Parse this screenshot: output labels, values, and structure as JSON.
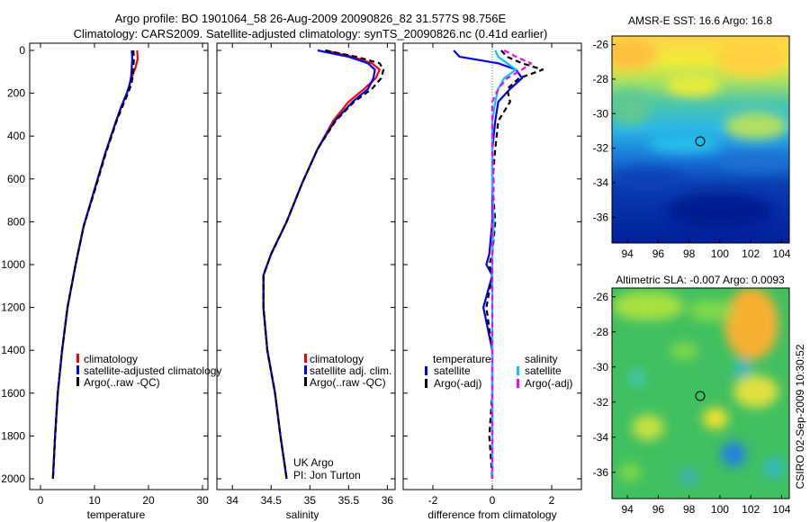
{
  "title": {
    "line1": "Argo profile: BO 1901064_58 26-Aug-2009 20090826_82 31.577S 98.756E",
    "line2": "Climatology: CARS2009. Satellite-adjusted climatology: synTS_20090826.nc (0.41d earlier)"
  },
  "chart_data": [
    {
      "type": "line",
      "xlabel": "temperature",
      "xlim": [
        -2,
        31
      ],
      "ylim": [
        2000,
        0
      ],
      "xticks": [
        "0",
        "10",
        "20",
        "30"
      ],
      "yticks": [
        "0",
        "200",
        "400",
        "600",
        "800",
        "1000",
        "1200",
        "1400",
        "1600",
        "1800",
        "2000"
      ],
      "series": [
        {
          "name": "climatology",
          "color": "#ff0000",
          "style": "solid",
          "x": [
            17.9,
            18.0,
            17.6,
            17.0,
            16.5,
            16.0,
            15.0,
            14.0,
            12.0,
            10.0,
            8.0,
            6.5,
            5.0,
            4.0,
            3.2,
            2.7,
            2.4,
            2.3
          ],
          "y": [
            0,
            40,
            80,
            120,
            160,
            200,
            260,
            330,
            480,
            650,
            820,
            1000,
            1200,
            1400,
            1600,
            1800,
            1950,
            2000
          ]
        },
        {
          "name": "satellite-adjusted climatology",
          "color": "#0000ff",
          "style": "solid",
          "x": [
            16.9,
            17.0,
            16.9,
            16.8,
            16.5,
            16.0,
            15.0,
            14.0,
            12.0,
            10.0,
            8.0,
            6.5,
            5.0,
            4.0,
            3.2,
            2.7,
            2.4,
            2.3
          ],
          "y": [
            0,
            40,
            80,
            120,
            160,
            200,
            260,
            330,
            480,
            650,
            820,
            1000,
            1200,
            1400,
            1600,
            1800,
            1950,
            2000
          ]
        },
        {
          "name": "Argo(..raw -QC)",
          "color": "#000000",
          "style": "dashed",
          "x": [
            17.2,
            17.3,
            17.2,
            17.1,
            16.8,
            16.2,
            15.2,
            14.1,
            12.1,
            10.1,
            8.0,
            6.5,
            5.0,
            4.0,
            3.2,
            2.7,
            2.4,
            2.3
          ],
          "y": [
            0,
            40,
            80,
            120,
            160,
            200,
            260,
            330,
            480,
            650,
            820,
            1000,
            1200,
            1400,
            1600,
            1800,
            1950,
            2000
          ]
        }
      ],
      "legend_placement": "lower-right"
    },
    {
      "type": "line",
      "xlabel": "salinity",
      "xlim": [
        33.8,
        36.1
      ],
      "ylim": [
        2000,
        0
      ],
      "xticks": [
        "34",
        "34.5",
        "35",
        "35.5",
        "36"
      ],
      "series": [
        {
          "name": "climatology",
          "color": "#ff0000",
          "style": "solid",
          "x": [
            35.2,
            35.55,
            35.8,
            35.9,
            35.85,
            35.7,
            35.5,
            35.3,
            35.1,
            34.9,
            34.7,
            34.5,
            34.4,
            34.4,
            34.45,
            34.55,
            34.62,
            34.68,
            34.7
          ],
          "y": [
            0,
            30,
            60,
            90,
            130,
            180,
            240,
            330,
            460,
            620,
            800,
            950,
            1050,
            1200,
            1400,
            1600,
            1800,
            1950,
            2000
          ]
        },
        {
          "name": "satellite adj. clim.",
          "color": "#0000ff",
          "style": "solid",
          "x": [
            35.1,
            35.5,
            35.75,
            35.84,
            35.82,
            35.75,
            35.55,
            35.32,
            35.1,
            34.9,
            34.7,
            34.5,
            34.4,
            34.4,
            34.45,
            34.55,
            34.62,
            34.68,
            34.7
          ],
          "y": [
            0,
            30,
            60,
            90,
            130,
            180,
            240,
            330,
            460,
            620,
            800,
            950,
            1050,
            1200,
            1400,
            1600,
            1800,
            1950,
            2000
          ]
        },
        {
          "name": "Argo(..raw -QC)",
          "color": "#000000",
          "style": "dashed",
          "x": [
            35.2,
            35.6,
            35.9,
            35.95,
            35.92,
            35.8,
            35.57,
            35.33,
            35.1,
            34.9,
            34.7,
            34.5,
            34.4,
            34.4,
            34.45,
            34.55,
            34.62,
            34.68,
            34.7
          ],
          "y": [
            0,
            30,
            60,
            90,
            130,
            180,
            240,
            330,
            460,
            620,
            800,
            950,
            1050,
            1200,
            1400,
            1600,
            1800,
            1950,
            2000
          ]
        }
      ],
      "annotations": [
        "UK Argo",
        "PI: Jon Turton"
      ],
      "legend_placement": "lower-right"
    },
    {
      "type": "line",
      "xlabel": "difference from climatology",
      "xlim": [
        -3,
        3
      ],
      "ylim": [
        2000,
        0
      ],
      "xticks": [
        "-2",
        "0",
        "2"
      ],
      "legend_groups": [
        "temperature",
        "salinity"
      ],
      "series": [
        {
          "name": "satellite",
          "group": "temperature",
          "color": "#0000ff",
          "style": "solid",
          "x": [
            -1.3,
            -1.1,
            0.2,
            0.8,
            1.0,
            0.6,
            0.2,
            0.1,
            0.0,
            0.0,
            0.0,
            -0.1,
            -0.2,
            0.0,
            -0.3,
            0.0,
            0.0,
            0.0,
            0.0
          ],
          "y": [
            0,
            30,
            60,
            90,
            130,
            180,
            240,
            330,
            460,
            620,
            800,
            950,
            1000,
            1050,
            1200,
            1400,
            1600,
            1800,
            2000
          ]
        },
        {
          "name": "Argo(-adj)",
          "group": "temperature",
          "color": "#000000",
          "style": "dashed",
          "x": [
            0.3,
            0.5,
            1.0,
            1.7,
            0.9,
            0.5,
            0.6,
            0.2,
            0.1,
            0.0,
            0.1,
            0.0,
            -0.1,
            0.0,
            -0.2,
            0.0,
            0.0,
            -0.1,
            0.0
          ],
          "y": [
            0,
            30,
            60,
            90,
            130,
            180,
            240,
            330,
            460,
            620,
            800,
            950,
            1000,
            1050,
            1200,
            1400,
            1600,
            1800,
            2000
          ]
        },
        {
          "name": "satellite",
          "group": "salinity",
          "color": "#00c8ff",
          "style": "solid",
          "x": [
            0.1,
            0.2,
            0.5,
            0.8,
            0.4,
            0.2,
            0.1,
            0.0,
            0.0,
            0.0,
            0.05,
            0.0,
            0.0,
            0.0,
            0.0,
            0.0,
            0.0
          ],
          "y": [
            0,
            30,
            60,
            90,
            130,
            180,
            240,
            330,
            460,
            620,
            800,
            950,
            1050,
            1200,
            1400,
            1700,
            2000
          ]
        },
        {
          "name": "Argo(-adj)",
          "group": "salinity",
          "color": "#ff00ff",
          "style": "dashed",
          "x": [
            0.4,
            0.8,
            1.3,
            1.0,
            0.5,
            0.2,
            0.0,
            0.0,
            0.0,
            0.05,
            0.0,
            0.0,
            0.0,
            0.0,
            0.0,
            0.0
          ],
          "y": [
            0,
            30,
            60,
            90,
            130,
            180,
            240,
            330,
            460,
            620,
            800,
            1000,
            1200,
            1500,
            1800,
            2000
          ]
        }
      ],
      "legend_placement": "lower-center"
    },
    {
      "type": "heatmap",
      "title": "AMSR-E SST: 16.6 Argo: 16.8",
      "xlim": [
        93,
        104.5
      ],
      "ylim": [
        -37.5,
        -25.5
      ],
      "xticks": [
        "94",
        "96",
        "98",
        "100",
        "102",
        "104"
      ],
      "yticks": [
        "-26",
        "-28",
        "-30",
        "-32",
        "-34",
        "-36"
      ],
      "marker": {
        "lon": 98.756,
        "lat": -31.577
      }
    },
    {
      "type": "heatmap",
      "title": "Altimetric SLA: -0.007 Argo: 0.0093",
      "xlim": [
        93,
        104.5
      ],
      "ylim": [
        -37.5,
        -25.5
      ],
      "xticks": [
        "94",
        "96",
        "98",
        "100",
        "102",
        "104"
      ],
      "yticks": [
        "-26",
        "-28",
        "-30",
        "-32",
        "-34",
        "-36"
      ],
      "marker": {
        "lon": 98.756,
        "lat": -31.577
      }
    }
  ],
  "side_label": "CSIRO 02-Sep-2009 10:30:52"
}
